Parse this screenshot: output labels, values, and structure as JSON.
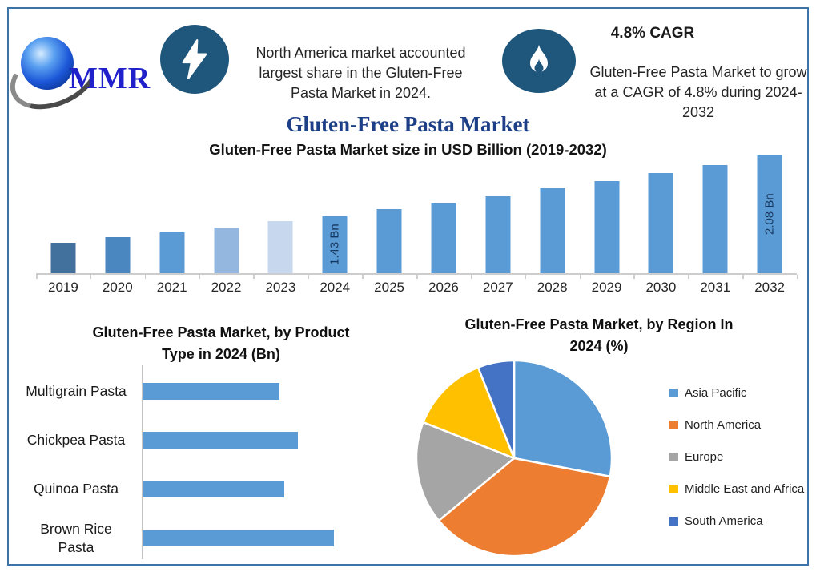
{
  "header": {
    "logo_text": "MMR",
    "highlight1": {
      "icon": "lightning-icon",
      "text": "North America market accounted largest share in the Gluten-Free Pasta Market in 2024."
    },
    "highlight2": {
      "icon": "flame-icon",
      "heading": "4.8% CAGR",
      "text": "Gluten-Free Pasta Market to grow at a CAGR of 4.8% during 2024-2032"
    }
  },
  "title": "Gluten-Free Pasta Market",
  "colors": {
    "frame_border": "#3e73a9",
    "badge_blue": "#1e567c",
    "title_navy": "#1c3f87",
    "bar_default": "#5b9bd5"
  },
  "chart_data": [
    {
      "type": "bar",
      "title": "Gluten-Free Pasta Market size in USD Billion (2019-2032)",
      "categories": [
        "2019",
        "2020",
        "2021",
        "2022",
        "2023",
        "2024",
        "2025",
        "2026",
        "2027",
        "2028",
        "2029",
        "2030",
        "2031",
        "2032"
      ],
      "values": [
        1.13,
        1.19,
        1.24,
        1.3,
        1.37,
        1.43,
        1.5,
        1.57,
        1.64,
        1.72,
        1.8,
        1.89,
        1.98,
        2.08
      ],
      "bar_labels": [
        "",
        "",
        "",
        "",
        "",
        "1.43 Bn",
        "",
        "",
        "",
        "",
        "",
        "",
        "",
        "2.08 Bn"
      ],
      "bar_colors": [
        "#41719c",
        "#4a86bf",
        "#5b9bd5",
        "#94b7e0",
        "#c7d8ee",
        "#5b9bd5",
        "#5b9bd5",
        "#5b9bd5",
        "#5b9bd5",
        "#5b9bd5",
        "#5b9bd5",
        "#5b9bd5",
        "#5b9bd5",
        "#5b9bd5"
      ],
      "xlabel": "",
      "ylabel": "USD Billion",
      "ylim": [
        0.8,
        2.15
      ],
      "gridlines": false
    },
    {
      "type": "bar",
      "orientation": "horizontal",
      "title": "Gluten-Free Pasta Market, by Product Type in 2024 (Bn)",
      "categories": [
        "Multigrain Pasta",
        "Chickpea Pasta",
        "Quinoa Pasta",
        "Brown Rice Pasta"
      ],
      "values": [
        0.3,
        0.34,
        0.31,
        0.42
      ],
      "xlim": [
        0,
        0.5
      ],
      "bar_color": "#5b9bd5",
      "gridlines": false
    },
    {
      "type": "pie",
      "title": "Gluten-Free Pasta Market, by Region In 2024 (%)",
      "labels": [
        "Asia Pacific",
        "North America",
        "Europe",
        "Middle East and Africa",
        "South America"
      ],
      "values": [
        28,
        36,
        17,
        13,
        6
      ],
      "colors": [
        "#5b9bd5",
        "#ed7d31",
        "#a5a5a5",
        "#ffc000",
        "#4472c4"
      ],
      "start_angle_deg": 0,
      "direction": "clockwise",
      "legend_position": "right"
    }
  ]
}
